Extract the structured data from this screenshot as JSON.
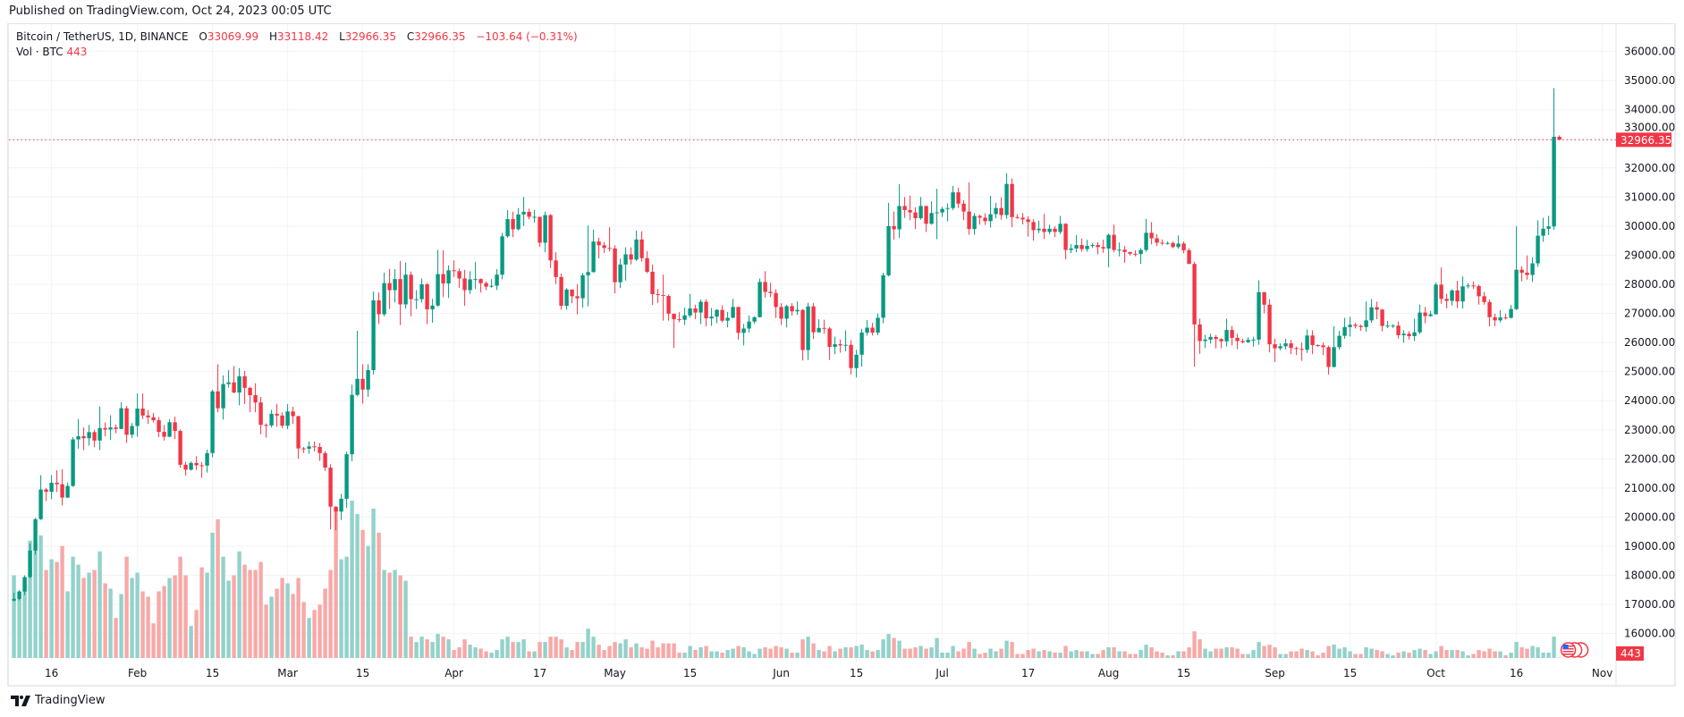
{
  "header": {
    "published": "Published on TradingView.com, Oct 24, 2023 00:05 UTC"
  },
  "legend": {
    "symbol": "Bitcoin / TetherUS, 1D, BINANCE",
    "o_label": "O",
    "o": "33069.99",
    "h_label": "H",
    "h": "33118.42",
    "l_label": "L",
    "l": "32966.35",
    "c_label": "C",
    "c": "32966.35",
    "change": "−103.64 (−0.31%)",
    "vol_label": "Vol · BTC",
    "vol": "443"
  },
  "footer": {
    "brand": "TradingView"
  },
  "colors": {
    "up": "#089981",
    "down": "#F23645",
    "vol_up": "#92d2cb",
    "vol_down": "#f7a9a7",
    "grid": "#f0f3fa",
    "last_price": "#F23645"
  },
  "chart_data": {
    "type": "candlestick",
    "title": "Bitcoin / TetherUS, 1D, BINANCE",
    "start_date": "2023-01-09",
    "first_open": 17130,
    "open_rule": "each open equals previous close unless listed in open_overrides",
    "open_overrides": {
      "288": 33069.99
    },
    "ylim": [
      15400,
      36600
    ],
    "y_ticks": [
      "36000.00",
      "35000.00",
      "34000.00",
      "33000.00",
      "32000.00",
      "31000.00",
      "30000.00",
      "29000.00",
      "28000.00",
      "27000.00",
      "26000.00",
      "25000.00",
      "24000.00",
      "23000.00",
      "22000.00",
      "21000.00",
      "20000.00",
      "19000.00",
      "18000.00",
      "17000.00",
      "16000.00"
    ],
    "x_ticks": [
      {
        "date": "2023-01-16",
        "label": "16"
      },
      {
        "date": "2023-02-01",
        "label": "Feb"
      },
      {
        "date": "2023-02-15",
        "label": "15"
      },
      {
        "date": "2023-03-01",
        "label": "Mar"
      },
      {
        "date": "2023-03-15",
        "label": "15"
      },
      {
        "date": "2023-04-01",
        "label": "Apr"
      },
      {
        "date": "2023-04-17",
        "label": "17"
      },
      {
        "date": "2023-05-01",
        "label": "May"
      },
      {
        "date": "2023-05-15",
        "label": "15"
      },
      {
        "date": "2023-06-01",
        "label": "Jun"
      },
      {
        "date": "2023-06-15",
        "label": "15"
      },
      {
        "date": "2023-07-01",
        "label": "Jul"
      },
      {
        "date": "2023-07-17",
        "label": "17"
      },
      {
        "date": "2023-08-01",
        "label": "Aug"
      },
      {
        "date": "2023-08-15",
        "label": "15"
      },
      {
        "date": "2023-09-01",
        "label": "Sep"
      },
      {
        "date": "2023-09-15",
        "label": "15"
      },
      {
        "date": "2023-10-01",
        "label": "Oct"
      },
      {
        "date": "2023-10-16",
        "label": "16"
      },
      {
        "date": "2023-11-01",
        "label": "Nov"
      }
    ],
    "last_price_label": "32966.35",
    "last_volume_label": "443",
    "volume_unit": "thousand BTC",
    "close": [
      17190,
      17440,
      17940,
      18850,
      19930,
      20950,
      20870,
      21180,
      21130,
      20670,
      21070,
      22670,
      22780,
      22710,
      22920,
      22630,
      23060,
      23010,
      23080,
      23030,
      23740,
      22830,
      23130,
      23730,
      23490,
      23430,
      23330,
      22930,
      22760,
      23260,
      22960,
      21800,
      21630,
      21860,
      21780,
      21770,
      22200,
      24320,
      23740,
      24570,
      24630,
      24280,
      24840,
      24440,
      24190,
      23940,
      23170,
      23150,
      23550,
      23490,
      23140,
      23630,
      23470,
      22360,
      22350,
      22430,
      22410,
      22200,
      21700,
      20360,
      20190,
      20630,
      22160,
      24200,
      24750,
      24380,
      25050,
      27450,
      26970,
      28040,
      27800,
      28180,
      27310,
      28330,
      27490,
      27490,
      28000,
      27140,
      27270,
      28350,
      28030,
      28480,
      28450,
      28200,
      27800,
      28170,
      28180,
      28040,
      27920,
      27950,
      28330,
      29650,
      30240,
      29890,
      30400,
      30490,
      30320,
      30320,
      29430,
      30380,
      28820,
      28250,
      27260,
      27820,
      27590,
      27520,
      28310,
      28420,
      29470,
      29340,
      29250,
      29230,
      28070,
      28680,
      29030,
      28850,
      29540,
      28900,
      28430,
      27660,
      27630,
      27600,
      26990,
      26800,
      26780,
      26930,
      27170,
      27030,
      27400,
      26830,
      26890,
      27120,
      26750,
      26850,
      27220,
      26330,
      26480,
      26720,
      26870,
      28080,
      27740,
      27700,
      27220,
      26820,
      27250,
      27070,
      27120,
      25740,
      27240,
      26350,
      26500,
      26480,
      25850,
      25940,
      25900,
      25920,
      25120,
      25580,
      26340,
      26510,
      26340,
      26850,
      28310,
      30000,
      29890,
      30690,
      30550,
      30470,
      30270,
      30690,
      30080,
      30450,
      30470,
      30590,
      30620,
      31160,
      30770,
      30500,
      29900,
      30350,
      30290,
      30170,
      30410,
      30620,
      30380,
      31450,
      30310,
      30290,
      30230,
      30140,
      29860,
      29910,
      29800,
      29910,
      29800,
      30080,
      29180,
      29230,
      29350,
      29210,
      29320,
      29350,
      29280,
      29230,
      29700,
      29180,
      29190,
      29110,
      29050,
      29040,
      29180,
      29770,
      29580,
      29430,
      29400,
      29420,
      29280,
      29400,
      29170,
      28700,
      26620,
      26050,
      26100,
      26190,
      26120,
      26040,
      26430,
      26160,
      26050,
      26010,
      26090,
      26100,
      27730,
      27300,
      25940,
      25800,
      25870,
      25970,
      25810,
      25780,
      25750,
      26240,
      25910,
      25900,
      25840,
      25160,
      25840,
      26230,
      26530,
      26610,
      26570,
      26530,
      26760,
      27210,
      27130,
      26570,
      26580,
      26580,
      26250,
      26300,
      26220,
      26350,
      27030,
      26910,
      26970,
      27990,
      27500,
      27430,
      27790,
      27410,
      27930,
      27960,
      27940,
      27590,
      27390,
      26870,
      26760,
      26860,
      26850,
      27150,
      28500,
      28400,
      28320,
      28720,
      29670,
      29910,
      29990,
      33069.99,
      32966.35
    ],
    "high": [
      17400,
      17490,
      18000,
      19100,
      19970,
      21440,
      21000,
      21440,
      21610,
      21650,
      21190,
      22750,
      23370,
      23080,
      23170,
      23000,
      23800,
      23250,
      23500,
      23180,
      23950,
      23820,
      23230,
      24250,
      24250,
      23680,
      23580,
      23440,
      23160,
      23370,
      23450,
      23010,
      21900,
      21910,
      22090,
      21890,
      22320,
      24380,
      25250,
      24870,
      25050,
      25190,
      25120,
      25020,
      24480,
      24600,
      24130,
      23220,
      23690,
      23890,
      23600,
      23880,
      23790,
      23480,
      22410,
      22600,
      22600,
      22550,
      22270,
      21820,
      20370,
      20800,
      22250,
      24550,
      26400,
      25250,
      25250,
      27750,
      27720,
      28400,
      28530,
      28520,
      28800,
      28750,
      28440,
      27800,
      28200,
      28050,
      27500,
      29180,
      29170,
      28650,
      28820,
      28540,
      28500,
      28450,
      28770,
      28200,
      28100,
      28180,
      28520,
      29770,
      30550,
      30500,
      30620,
      31000,
      30600,
      30560,
      30320,
      30500,
      30410,
      29100,
      28370,
      27870,
      27820,
      28000,
      28390,
      30020,
      29880,
      29600,
      29450,
      29960,
      29340,
      28880,
      29270,
      29270,
      29850,
      29820,
      29140,
      28670,
      27840,
      28330,
      27650,
      26970,
      27040,
      27200,
      27670,
      27300,
      27480,
      27490,
      27190,
      27150,
      27280,
      27050,
      27500,
      27230,
      26640,
      26930,
      26900,
      28200,
      28450,
      28050,
      27830,
      27350,
      27300,
      27350,
      27410,
      27150,
      27370,
      27360,
      26800,
      26780,
      26530,
      26200,
      26100,
      26420,
      26080,
      25750,
      26470,
      26770,
      26680,
      27000,
      28400,
      30800,
      30500,
      31440,
      31000,
      31050,
      30650,
      31000,
      30700,
      30850,
      31280,
      30660,
      30780,
      31380,
      31320,
      30890,
      31500,
      30450,
      30390,
      30440,
      31040,
      30800,
      30990,
      31820,
      31640,
      30410,
      30450,
      30340,
      30240,
      30190,
      30420,
      30050,
      30000,
      30350,
      30100,
      29380,
      29690,
      29570,
      29530,
      29410,
      29450,
      29530,
      29740,
      30050,
      29440,
      29320,
      29110,
      29170,
      29240,
      30250,
      30140,
      29720,
      29540,
      29470,
      29470,
      29680,
      29470,
      29240,
      28780,
      26820,
      26260,
      26300,
      26260,
      26140,
      26820,
      26570,
      26300,
      26130,
      26180,
      26200,
      28140,
      27580,
      27490,
      26130,
      25970,
      26130,
      26090,
      25860,
      26000,
      26450,
      26420,
      25940,
      26000,
      25890,
      26560,
      26400,
      26850,
      26880,
      26670,
      26620,
      27410,
      27490,
      27400,
      27160,
      26740,
      26630,
      26720,
      26420,
      26390,
      26820,
      27300,
      27220,
      27090,
      28060,
      28580,
      27670,
      27830,
      28120,
      28270,
      28040,
      28100,
      27990,
      27740,
      27480,
      26990,
      27110,
      26990,
      27290,
      30000,
      28620,
      28990,
      28920,
      30200,
      30290,
      30350,
      34741,
      33118.42
    ],
    "low": [
      17100,
      17140,
      17320,
      17900,
      18710,
      19900,
      20550,
      20610,
      20860,
      20400,
      20650,
      21040,
      22350,
      22300,
      22460,
      22400,
      22300,
      22780,
      22650,
      22880,
      23020,
      22550,
      22720,
      22760,
      23370,
      23200,
      23250,
      22750,
      22630,
      22750,
      22680,
      21690,
      21430,
      21600,
      21620,
      21350,
      21530,
      22050,
      23600,
      23350,
      24450,
      24260,
      23840,
      23880,
      23600,
      23600,
      22850,
      22730,
      23080,
      23100,
      23060,
      23020,
      23200,
      22000,
      22200,
      22180,
      22250,
      21930,
      21590,
      19580,
      19550,
      19900,
      20320,
      21920,
      24150,
      23900,
      24130,
      24900,
      26640,
      26900,
      27150,
      27370,
      26600,
      27160,
      26900,
      27150,
      27370,
      26630,
      26680,
      27230,
      27560,
      27530,
      28250,
      27880,
      27260,
      27670,
      27840,
      27720,
      27800,
      27880,
      27800,
      28170,
      29600,
      29620,
      29850,
      30000,
      30230,
      30120,
      29280,
      29100,
      28560,
      28010,
      27130,
      27130,
      27350,
      26970,
      27200,
      27240,
      28400,
      28890,
      29080,
      29130,
      27690,
      27870,
      28130,
      28680,
      28800,
      28780,
      28380,
      27290,
      27360,
      26750,
      26750,
      25810,
      26700,
      26600,
      26860,
      26800,
      26630,
      26550,
      26570,
      26660,
      26690,
      26520,
      26830,
      26100,
      25900,
      26340,
      26640,
      26860,
      27540,
      27560,
      26840,
      26600,
      26520,
      26920,
      26950,
      25380,
      25400,
      26120,
      26350,
      26300,
      25400,
      25600,
      25650,
      25700,
      24900,
      24800,
      25170,
      26240,
      26240,
      26250,
      26660,
      28270,
      29530,
      29590,
      30280,
      30200,
      29900,
      30220,
      29800,
      30050,
      29550,
      30320,
      30160,
      30550,
      30620,
      30200,
      29700,
      29700,
      30050,
      30040,
      29950,
      30270,
      30220,
      30250,
      29960,
      30250,
      30060,
      29640,
      29500,
      29760,
      29560,
      29720,
      29620,
      29720,
      28860,
      29070,
      29100,
      29120,
      29120,
      29250,
      29030,
      29080,
      28590,
      29100,
      28960,
      28740,
      28990,
      28960,
      28700,
      29120,
      29370,
      29320,
      29340,
      29360,
      29240,
      29220,
      29070,
      28700,
      25170,
      25610,
      25810,
      25960,
      25800,
      25800,
      25860,
      25900,
      25770,
      25970,
      25980,
      25860,
      25920,
      27000,
      25660,
      25330,
      25730,
      25760,
      25600,
      25570,
      25370,
      25640,
      25600,
      25850,
      25570,
      24900,
      25140,
      25760,
      26130,
      26210,
      26480,
      26400,
      26370,
      26670,
      26800,
      26380,
      26490,
      26500,
      26130,
      25990,
      26100,
      26050,
      26290,
      26660,
      26880,
      26960,
      27330,
      27170,
      27270,
      27180,
      27170,
      27860,
      27840,
      27300,
      27300,
      26550,
      26560,
      26690,
      26790,
      26820,
      27110,
      28100,
      28160,
      28080,
      28600,
      29460,
      29690,
      29870,
      32966.35
    ],
    "volume": [
      310,
      250,
      300,
      440,
      430,
      460,
      330,
      370,
      360,
      420,
      250,
      380,
      350,
      300,
      320,
      330,
      400,
      280,
      260,
      150,
      240,
      380,
      300,
      320,
      250,
      230,
      130,
      250,
      270,
      300,
      310,
      380,
      310,
      120,
      180,
      340,
      320,
      470,
      520,
      380,
      290,
      310,
      400,
      350,
      330,
      330,
      360,
      200,
      230,
      260,
      300,
      280,
      240,
      300,
      210,
      150,
      180,
      200,
      260,
      330,
      560,
      370,
      380,
      590,
      540,
      480,
      420,
      560,
      470,
      330,
      320,
      330,
      310,
      290,
      80,
      60,
      80,
      70,
      60,
      90,
      80,
      70,
      30,
      40,
      70,
      50,
      40,
      35,
      25,
      20,
      30,
      70,
      80,
      60,
      60,
      70,
      25,
      25,
      60,
      60,
      80,
      80,
      70,
      40,
      30,
      60,
      60,
      110,
      80,
      50,
      30,
      45,
      60,
      55,
      70,
      40,
      55,
      40,
      35,
      65,
      40,
      55,
      55,
      55,
      20,
      20,
      45,
      30,
      40,
      45,
      25,
      25,
      20,
      30,
      35,
      45,
      40,
      25,
      15,
      35,
      40,
      35,
      45,
      40,
      35,
      20,
      20,
      70,
      80,
      55,
      30,
      25,
      45,
      25,
      35,
      40,
      40,
      45,
      50,
      30,
      25,
      30,
      70,
      90,
      75,
      65,
      35,
      35,
      40,
      45,
      35,
      40,
      75,
      20,
      20,
      45,
      25,
      35,
      60,
      35,
      15,
      20,
      35,
      25,
      35,
      65,
      60,
      15,
      15,
      30,
      35,
      25,
      30,
      25,
      20,
      20,
      45,
      25,
      30,
      25,
      25,
      15,
      15,
      30,
      40,
      40,
      25,
      25,
      15,
      15,
      30,
      50,
      40,
      25,
      20,
      10,
      10,
      25,
      25,
      40,
      100,
      70,
      35,
      25,
      35,
      35,
      40,
      40,
      35,
      15,
      15,
      30,
      60,
      45,
      50,
      40,
      15,
      15,
      25,
      25,
      35,
      30,
      25,
      10,
      20,
      45,
      50,
      35,
      40,
      25,
      15,
      15,
      40,
      35,
      30,
      25,
      15,
      10,
      20,
      25,
      20,
      30,
      35,
      30,
      15,
      25,
      45,
      30,
      30,
      30,
      25,
      10,
      15,
      30,
      25,
      35,
      25,
      25,
      10,
      20,
      60,
      40,
      35,
      45,
      40,
      20,
      20,
      80,
      0.443
    ]
  }
}
